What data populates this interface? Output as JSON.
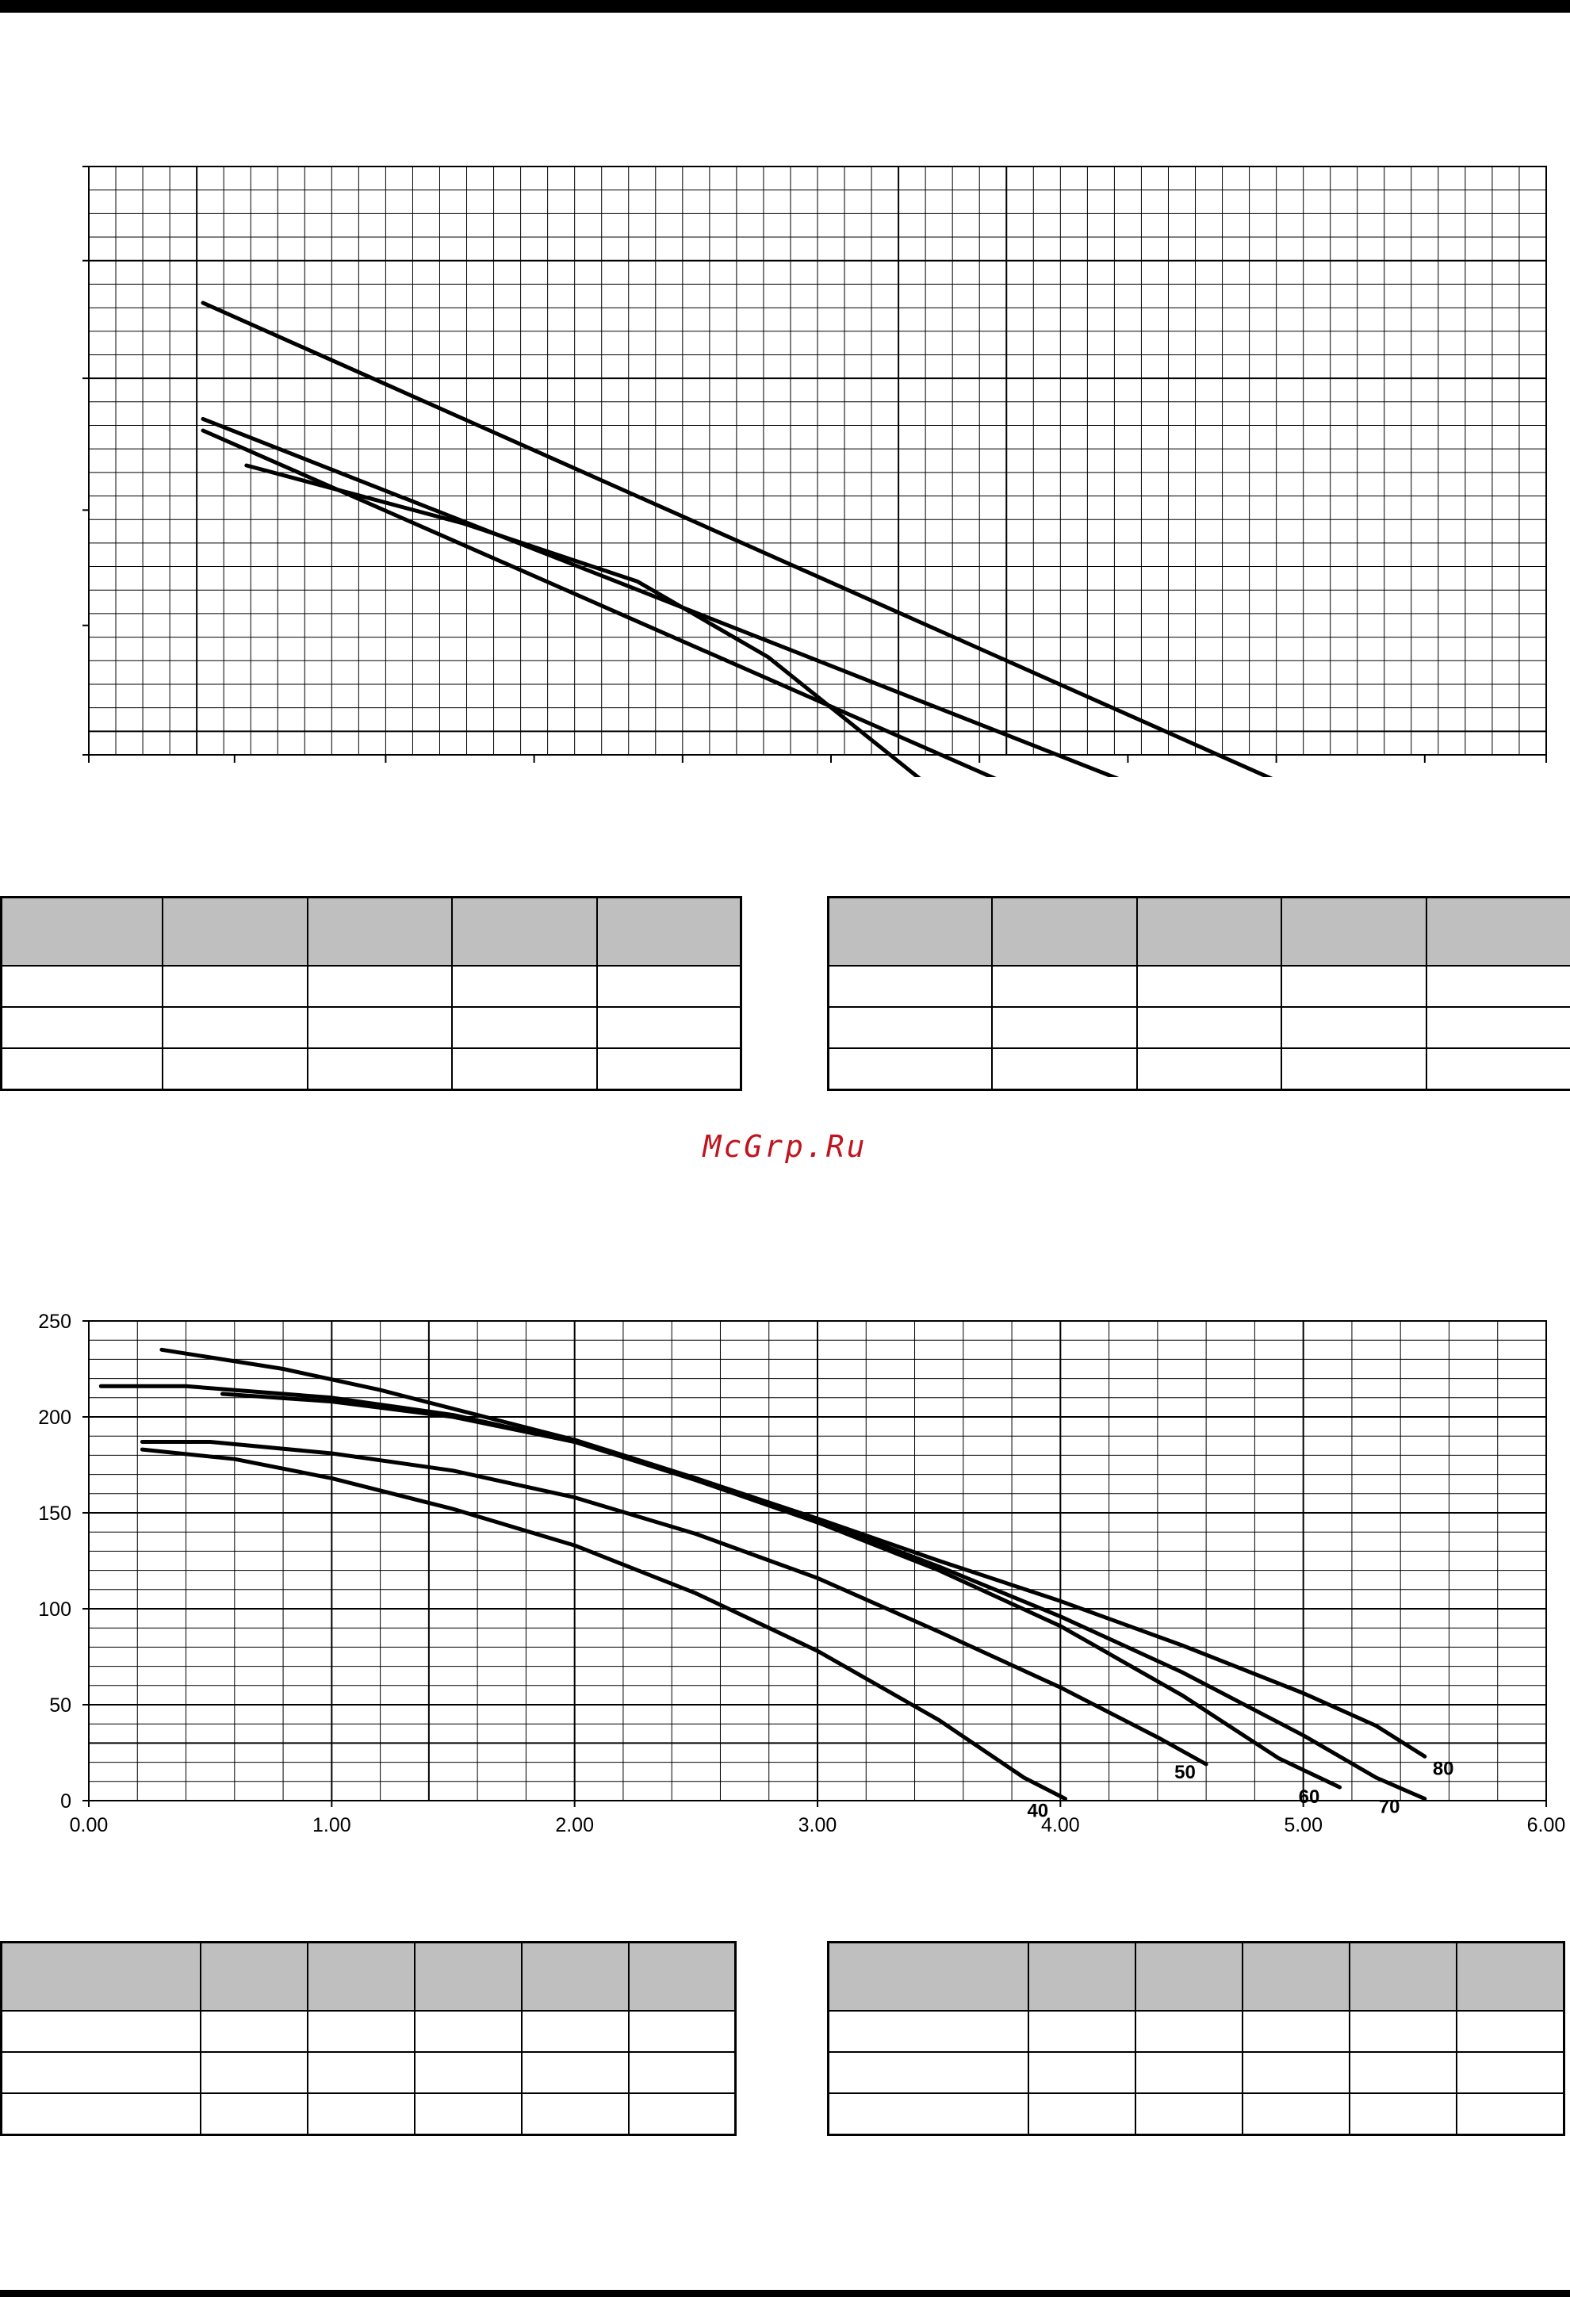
{
  "watermark": "McGrp.Ru",
  "colors": {
    "rule": "#000000",
    "table_header": "#bfbfbf",
    "watermark": "#c0141e",
    "curve": "#000000"
  },
  "chart_data": [
    {
      "type": "line",
      "title": "",
      "xlabel": "",
      "ylabel": "",
      "axis_labels_printed": false,
      "grid": true,
      "series": [
        {
          "values": [
            [
              0.0,
              1.0
            ],
            [
              3.0,
              0.0
            ]
          ]
        },
        {
          "values": [
            [
              0.0,
              0.8
            ],
            [
              2.65,
              0.02
            ]
          ]
        },
        {
          "values": [
            [
              0.0,
              0.78
            ],
            [
              2.28,
              0.03
            ]
          ]
        },
        {
          "values": [
            [
              0.1,
              0.72
            ],
            [
              0.6,
              0.62
            ],
            [
              1.0,
              0.52
            ],
            [
              1.3,
              0.39
            ],
            [
              1.65,
              0.18
            ]
          ]
        }
      ]
    },
    {
      "type": "line",
      "title": "",
      "xlabel": "",
      "ylabel": "",
      "xlim": [
        0,
        6
      ],
      "ylim": [
        0,
        250
      ],
      "x_ticks": [
        "0.00",
        "1.00",
        "2.00",
        "3.00",
        "4.00",
        "5.00",
        "6.00"
      ],
      "y_ticks": [
        "0",
        "50",
        "100",
        "150",
        "200",
        "250"
      ],
      "grid": true,
      "series": [
        {
          "label": "40",
          "values": [
            [
              0.22,
              183
            ],
            [
              0.6,
              178
            ],
            [
              1.0,
              168
            ],
            [
              1.5,
              152
            ],
            [
              2.0,
              133
            ],
            [
              2.5,
              108
            ],
            [
              3.0,
              78
            ],
            [
              3.5,
              42
            ],
            [
              3.85,
              12
            ],
            [
              4.02,
              1
            ]
          ]
        },
        {
          "label": "50",
          "values": [
            [
              0.22,
              187
            ],
            [
              0.5,
              187
            ],
            [
              1.0,
              181
            ],
            [
              1.5,
              172
            ],
            [
              2.0,
              158
            ],
            [
              2.5,
              139
            ],
            [
              3.0,
              116
            ],
            [
              3.5,
              88
            ],
            [
              4.0,
              59
            ],
            [
              4.4,
              33
            ],
            [
              4.6,
              19
            ]
          ]
        },
        {
          "label": "60",
          "values": [
            [
              0.55,
              212
            ],
            [
              1.0,
              208
            ],
            [
              1.5,
              200
            ],
            [
              2.0,
              187
            ],
            [
              2.5,
              167
            ],
            [
              3.0,
              145
            ],
            [
              3.5,
              120
            ],
            [
              4.0,
              91
            ],
            [
              4.5,
              55
            ],
            [
              4.9,
              22
            ],
            [
              5.15,
              7
            ]
          ]
        },
        {
          "label": "70",
          "values": [
            [
              0.05,
              216
            ],
            [
              0.4,
              216
            ],
            [
              1.0,
              210
            ],
            [
              1.5,
              201
            ],
            [
              2.0,
              187
            ],
            [
              2.5,
              168
            ],
            [
              3.0,
              146
            ],
            [
              3.5,
              122
            ],
            [
              4.0,
              96
            ],
            [
              4.5,
              67
            ],
            [
              5.0,
              34
            ],
            [
              5.3,
              12
            ],
            [
              5.5,
              1
            ]
          ]
        },
        {
          "label": "80",
          "values": [
            [
              0.3,
              235
            ],
            [
              0.8,
              225
            ],
            [
              1.2,
              214
            ],
            [
              1.6,
              201
            ],
            [
              2.0,
              188
            ],
            [
              2.5,
              168
            ],
            [
              3.0,
              147
            ],
            [
              3.5,
              125
            ],
            [
              4.0,
              104
            ],
            [
              4.5,
              81
            ],
            [
              5.0,
              56
            ],
            [
              5.3,
              39
            ],
            [
              5.5,
              23
            ]
          ]
        }
      ]
    }
  ]
}
